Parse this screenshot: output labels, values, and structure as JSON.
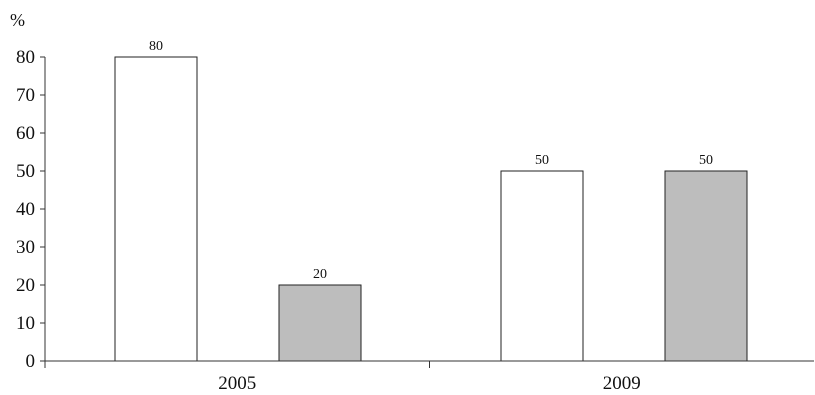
{
  "chart_data": {
    "type": "bar",
    "ylabel": "%",
    "categories": [
      "2005",
      "2009"
    ],
    "series": [
      {
        "values": [
          80,
          50
        ],
        "color": "#ffffff"
      },
      {
        "values": [
          20,
          50
        ],
        "color": "#bdbdbd"
      }
    ],
    "ylim": [
      0,
      80
    ],
    "yticks": [
      0,
      10,
      20,
      30,
      40,
      50,
      60,
      70,
      80
    ],
    "data_labels": true,
    "grid": false,
    "legend": "none"
  }
}
